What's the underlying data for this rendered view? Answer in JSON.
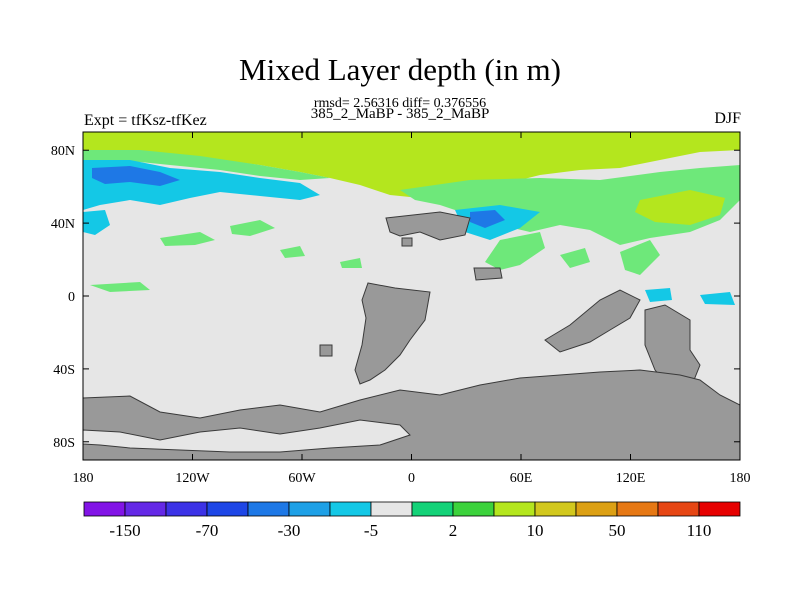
{
  "title": "Mixed Layer depth (in m)",
  "subtitle": "rmsd= 2.56316 diff= 0.376556",
  "case_label": "385_2_MaBP - 385_2_MaBP",
  "left_label": "Expt = tfKsz-tfKez",
  "right_label": "DJF",
  "map": {
    "lat_ticks": [
      "80N",
      "40N",
      "0",
      "40S",
      "80S"
    ],
    "lat_values": [
      80,
      40,
      0,
      -40,
      -80
    ],
    "lon_ticks": [
      "180",
      "120W",
      "60W",
      "0",
      "60E",
      "120E",
      "180"
    ],
    "lon_values": [
      -180,
      -120,
      -60,
      0,
      60,
      120,
      180
    ],
    "lat_range": [
      -90,
      90
    ],
    "lon_range": [
      -180,
      180
    ],
    "colors": {
      "land": "#999999",
      "near_zero": "#e6e6e6",
      "lightgreen": "#6ee87a",
      "green": "#3cd23c",
      "yellowgreen": "#b4e61e",
      "cyan": "#14c8e6",
      "lightblue": "#1ea0e6",
      "blue": "#1e6ee6"
    }
  },
  "colorbar": {
    "colors": [
      "#8214e6",
      "#6428e6",
      "#3c32e6",
      "#1e46e6",
      "#1e78e6",
      "#1ea0e6",
      "#14c8e6",
      "#e6e6e6",
      "#14d278",
      "#3cd23c",
      "#b4e61e",
      "#d2c81e",
      "#dca014",
      "#e67814",
      "#e64614",
      "#e60000"
    ],
    "labels": [
      "-150",
      "-70",
      "-30",
      "-5",
      "2",
      "10",
      "50",
      "110"
    ]
  }
}
